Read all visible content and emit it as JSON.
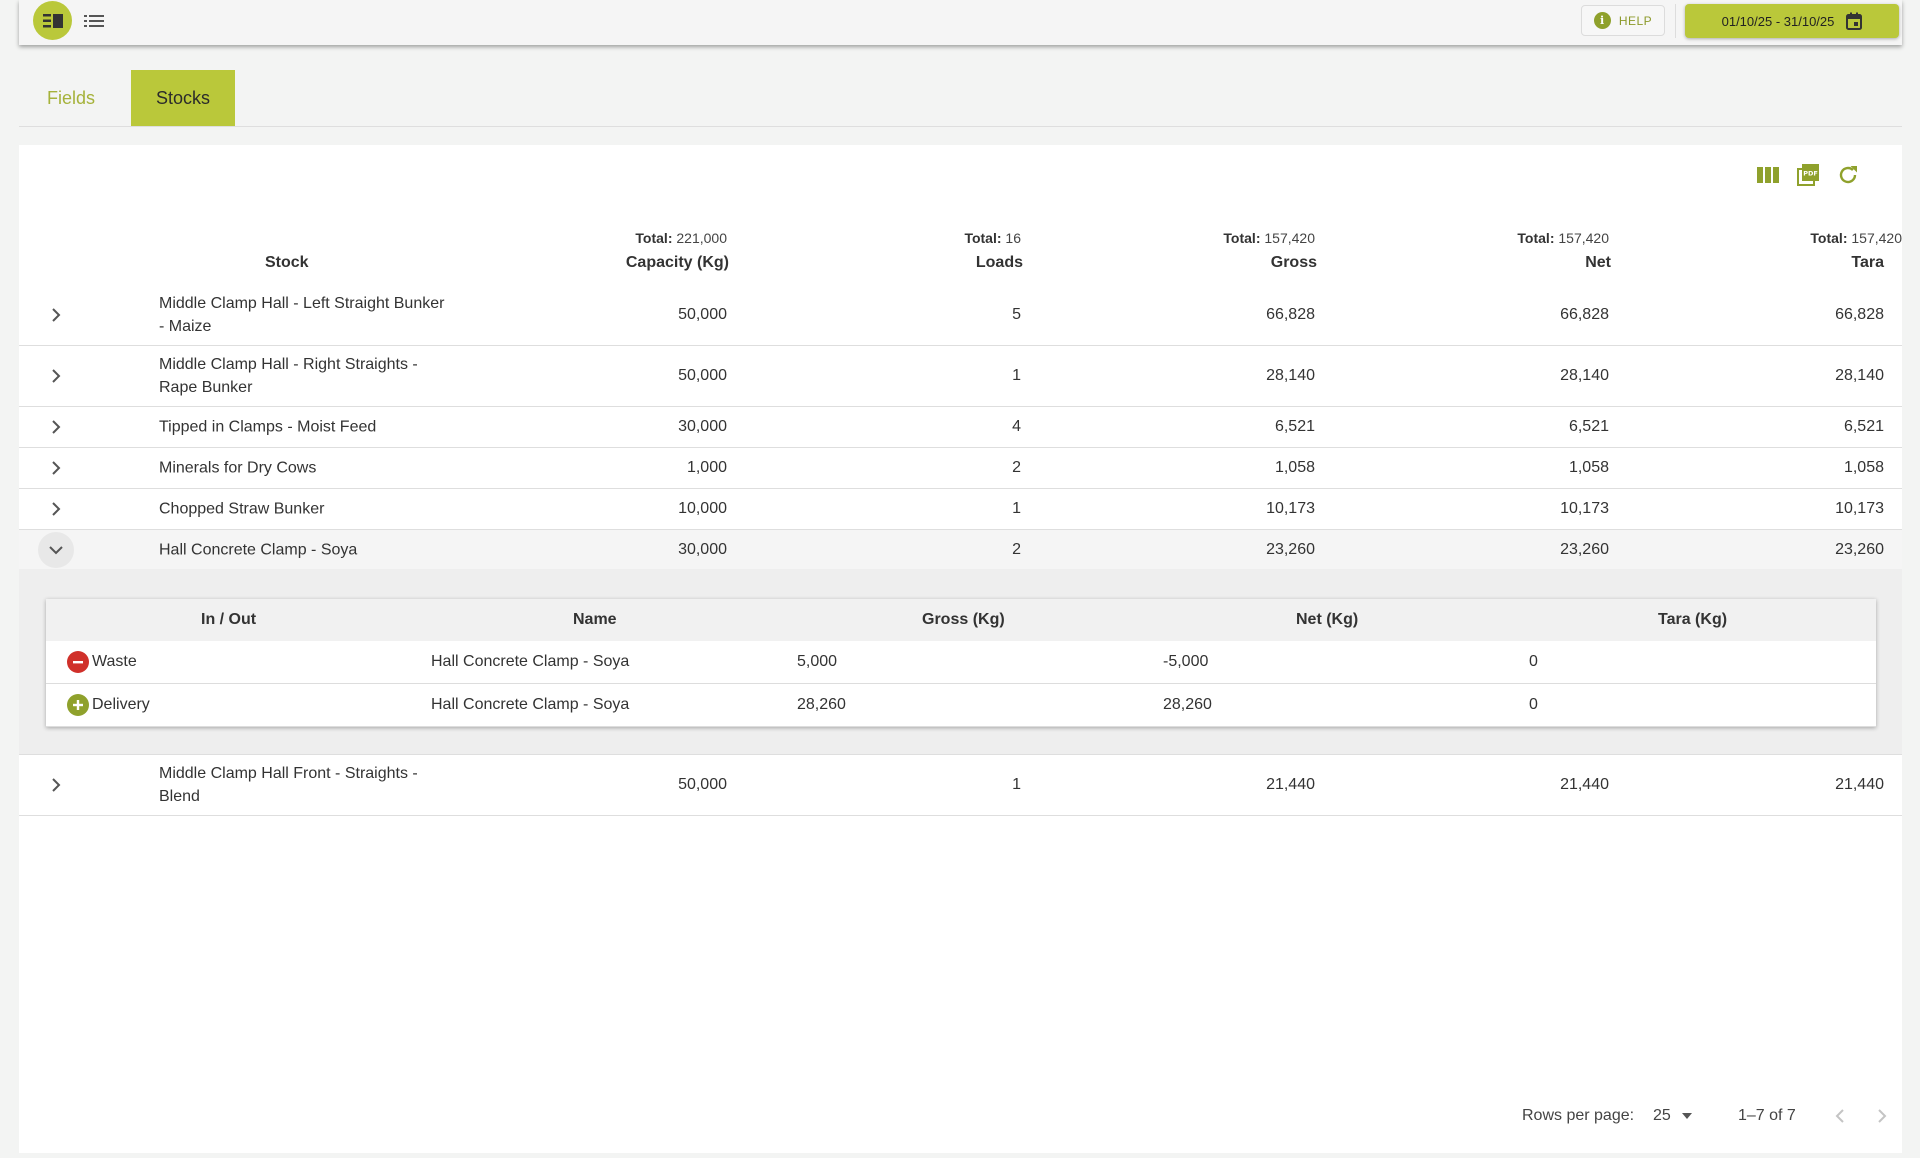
{
  "toolbar": {
    "help_label": "HELP",
    "date_range": "01/10/25 - 31/10/25"
  },
  "tabs": [
    {
      "label": "Fields",
      "active": false
    },
    {
      "label": "Stocks",
      "active": true
    }
  ],
  "accent_color": "#bac83a",
  "table": {
    "totals_prefix": "Total:",
    "columns": [
      {
        "label": "Stock",
        "total": ""
      },
      {
        "label": "Capacity (Kg)",
        "total": "221,000"
      },
      {
        "label": "Loads",
        "total": "16"
      },
      {
        "label": "Gross",
        "total": "157,420"
      },
      {
        "label": "Net",
        "total": "157,420"
      },
      {
        "label": "Tara",
        "total": "157,420"
      }
    ],
    "rows": [
      {
        "stock": "Middle Clamp Hall - Left Straight Bunker - Maize",
        "capacity": "50,000",
        "loads": "5",
        "gross": "66,828",
        "net": "66,828",
        "tara": "66,828",
        "expanded": false
      },
      {
        "stock": "Middle Clamp Hall - Right Straights - Rape Bunker",
        "capacity": "50,000",
        "loads": "1",
        "gross": "28,140",
        "net": "28,140",
        "tara": "28,140",
        "expanded": false
      },
      {
        "stock": "Tipped in Clamps - Moist Feed",
        "capacity": "30,000",
        "loads": "4",
        "gross": "6,521",
        "net": "6,521",
        "tara": "6,521",
        "expanded": false
      },
      {
        "stock": "Minerals for Dry Cows",
        "capacity": "1,000",
        "loads": "2",
        "gross": "1,058",
        "net": "1,058",
        "tara": "1,058",
        "expanded": false
      },
      {
        "stock": "Chopped Straw Bunker",
        "capacity": "10,000",
        "loads": "1",
        "gross": "10,173",
        "net": "10,173",
        "tara": "10,173",
        "expanded": false
      },
      {
        "stock": "Hall Concrete Clamp - Soya",
        "capacity": "30,000",
        "loads": "2",
        "gross": "23,260",
        "net": "23,260",
        "tara": "23,260",
        "expanded": true
      },
      {
        "stock": "Middle Clamp Hall Front - Straights - Blend",
        "capacity": "50,000",
        "loads": "1",
        "gross": "21,440",
        "net": "21,440",
        "tara": "21,440",
        "expanded": false
      }
    ]
  },
  "detail": {
    "columns": [
      "In / Out",
      "Name",
      "Gross (Kg)",
      "Net (Kg)",
      "Tara (Kg)"
    ],
    "rows": [
      {
        "type": "Waste",
        "icon": "minus-circle-icon",
        "icon_color": "#d0302a",
        "name": "Hall Concrete Clamp - Soya",
        "gross": "5,000",
        "net": "-5,000",
        "tara": "0"
      },
      {
        "type": "Delivery",
        "icon": "plus-circle-icon",
        "icon_color": "#8fa12c",
        "name": "Hall Concrete Clamp - Soya",
        "gross": "28,260",
        "net": "28,260",
        "tara": "0"
      }
    ]
  },
  "pagination": {
    "rows_per_page_label": "Rows per page:",
    "rows_per_page": "25",
    "range": "1–7 of 7"
  }
}
